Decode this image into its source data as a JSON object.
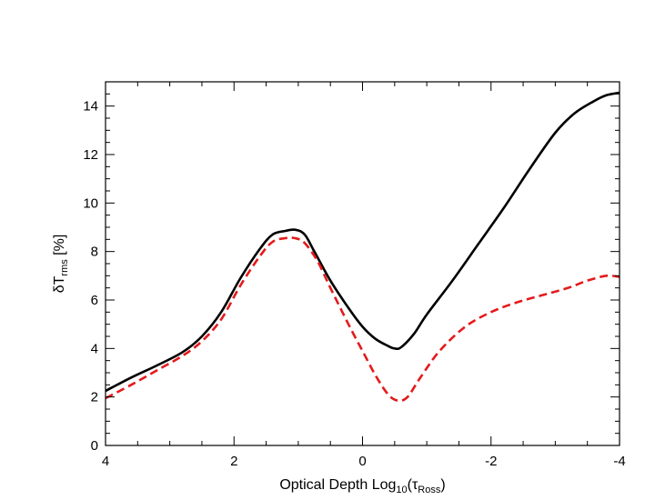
{
  "chart_data": {
    "type": "line",
    "xlabel": {
      "prefix": "Optical Depth Log",
      "sub": "10",
      "mid": "(τ",
      "sub2": "Ross",
      "suffix": ")"
    },
    "ylabel": {
      "prefix": "δT",
      "sub": "rms",
      "suffix": " [%]"
    },
    "xlim": [
      4,
      -4
    ],
    "ylim": [
      0,
      15
    ],
    "x_ticks": [
      4,
      2,
      0,
      -2,
      -4
    ],
    "x_tick_labels": [
      "4",
      "2",
      "0",
      "-2",
      "-4"
    ],
    "y_ticks": [
      0,
      2,
      4,
      6,
      8,
      10,
      12,
      14
    ],
    "y_tick_labels": [
      "0",
      "2",
      "4",
      "6",
      "8",
      "10",
      "12",
      "14"
    ],
    "grid": false,
    "legend": "none",
    "series": [
      {
        "color": "#000000",
        "dash": "solid",
        "x": [
          4.0,
          3.6,
          3.2,
          2.8,
          2.5,
          2.2,
          1.9,
          1.6,
          1.4,
          1.2,
          1.05,
          0.9,
          0.75,
          0.5,
          0.2,
          0.0,
          -0.2,
          -0.4,
          -0.5,
          -0.6,
          -0.8,
          -1.0,
          -1.4,
          -1.8,
          -2.2,
          -2.6,
          -3.0,
          -3.3,
          -3.6,
          -3.8,
          -4.0
        ],
        "y": [
          2.25,
          2.8,
          3.3,
          3.85,
          4.5,
          5.5,
          6.9,
          8.1,
          8.7,
          8.85,
          8.9,
          8.7,
          8.0,
          6.8,
          5.6,
          4.9,
          4.4,
          4.1,
          4.0,
          4.05,
          4.6,
          5.4,
          6.8,
          8.3,
          9.8,
          11.4,
          12.9,
          13.7,
          14.2,
          14.45,
          14.55
        ]
      },
      {
        "color": "#e41a1c",
        "dash": "dashed",
        "x": [
          4.0,
          3.6,
          3.2,
          2.8,
          2.5,
          2.2,
          1.9,
          1.6,
          1.4,
          1.2,
          1.05,
          0.9,
          0.7,
          0.5,
          0.2,
          0.0,
          -0.2,
          -0.4,
          -0.55,
          -0.7,
          -0.9,
          -1.2,
          -1.6,
          -2.0,
          -2.4,
          -2.8,
          -3.2,
          -3.5,
          -3.8,
          -4.0
        ],
        "y": [
          1.95,
          2.5,
          3.1,
          3.7,
          4.3,
          5.2,
          6.6,
          7.8,
          8.4,
          8.55,
          8.55,
          8.35,
          7.6,
          6.5,
          4.9,
          3.9,
          2.9,
          2.1,
          1.85,
          2.0,
          2.8,
          3.9,
          4.9,
          5.5,
          5.9,
          6.2,
          6.5,
          6.8,
          7.0,
          6.95
        ]
      }
    ]
  }
}
